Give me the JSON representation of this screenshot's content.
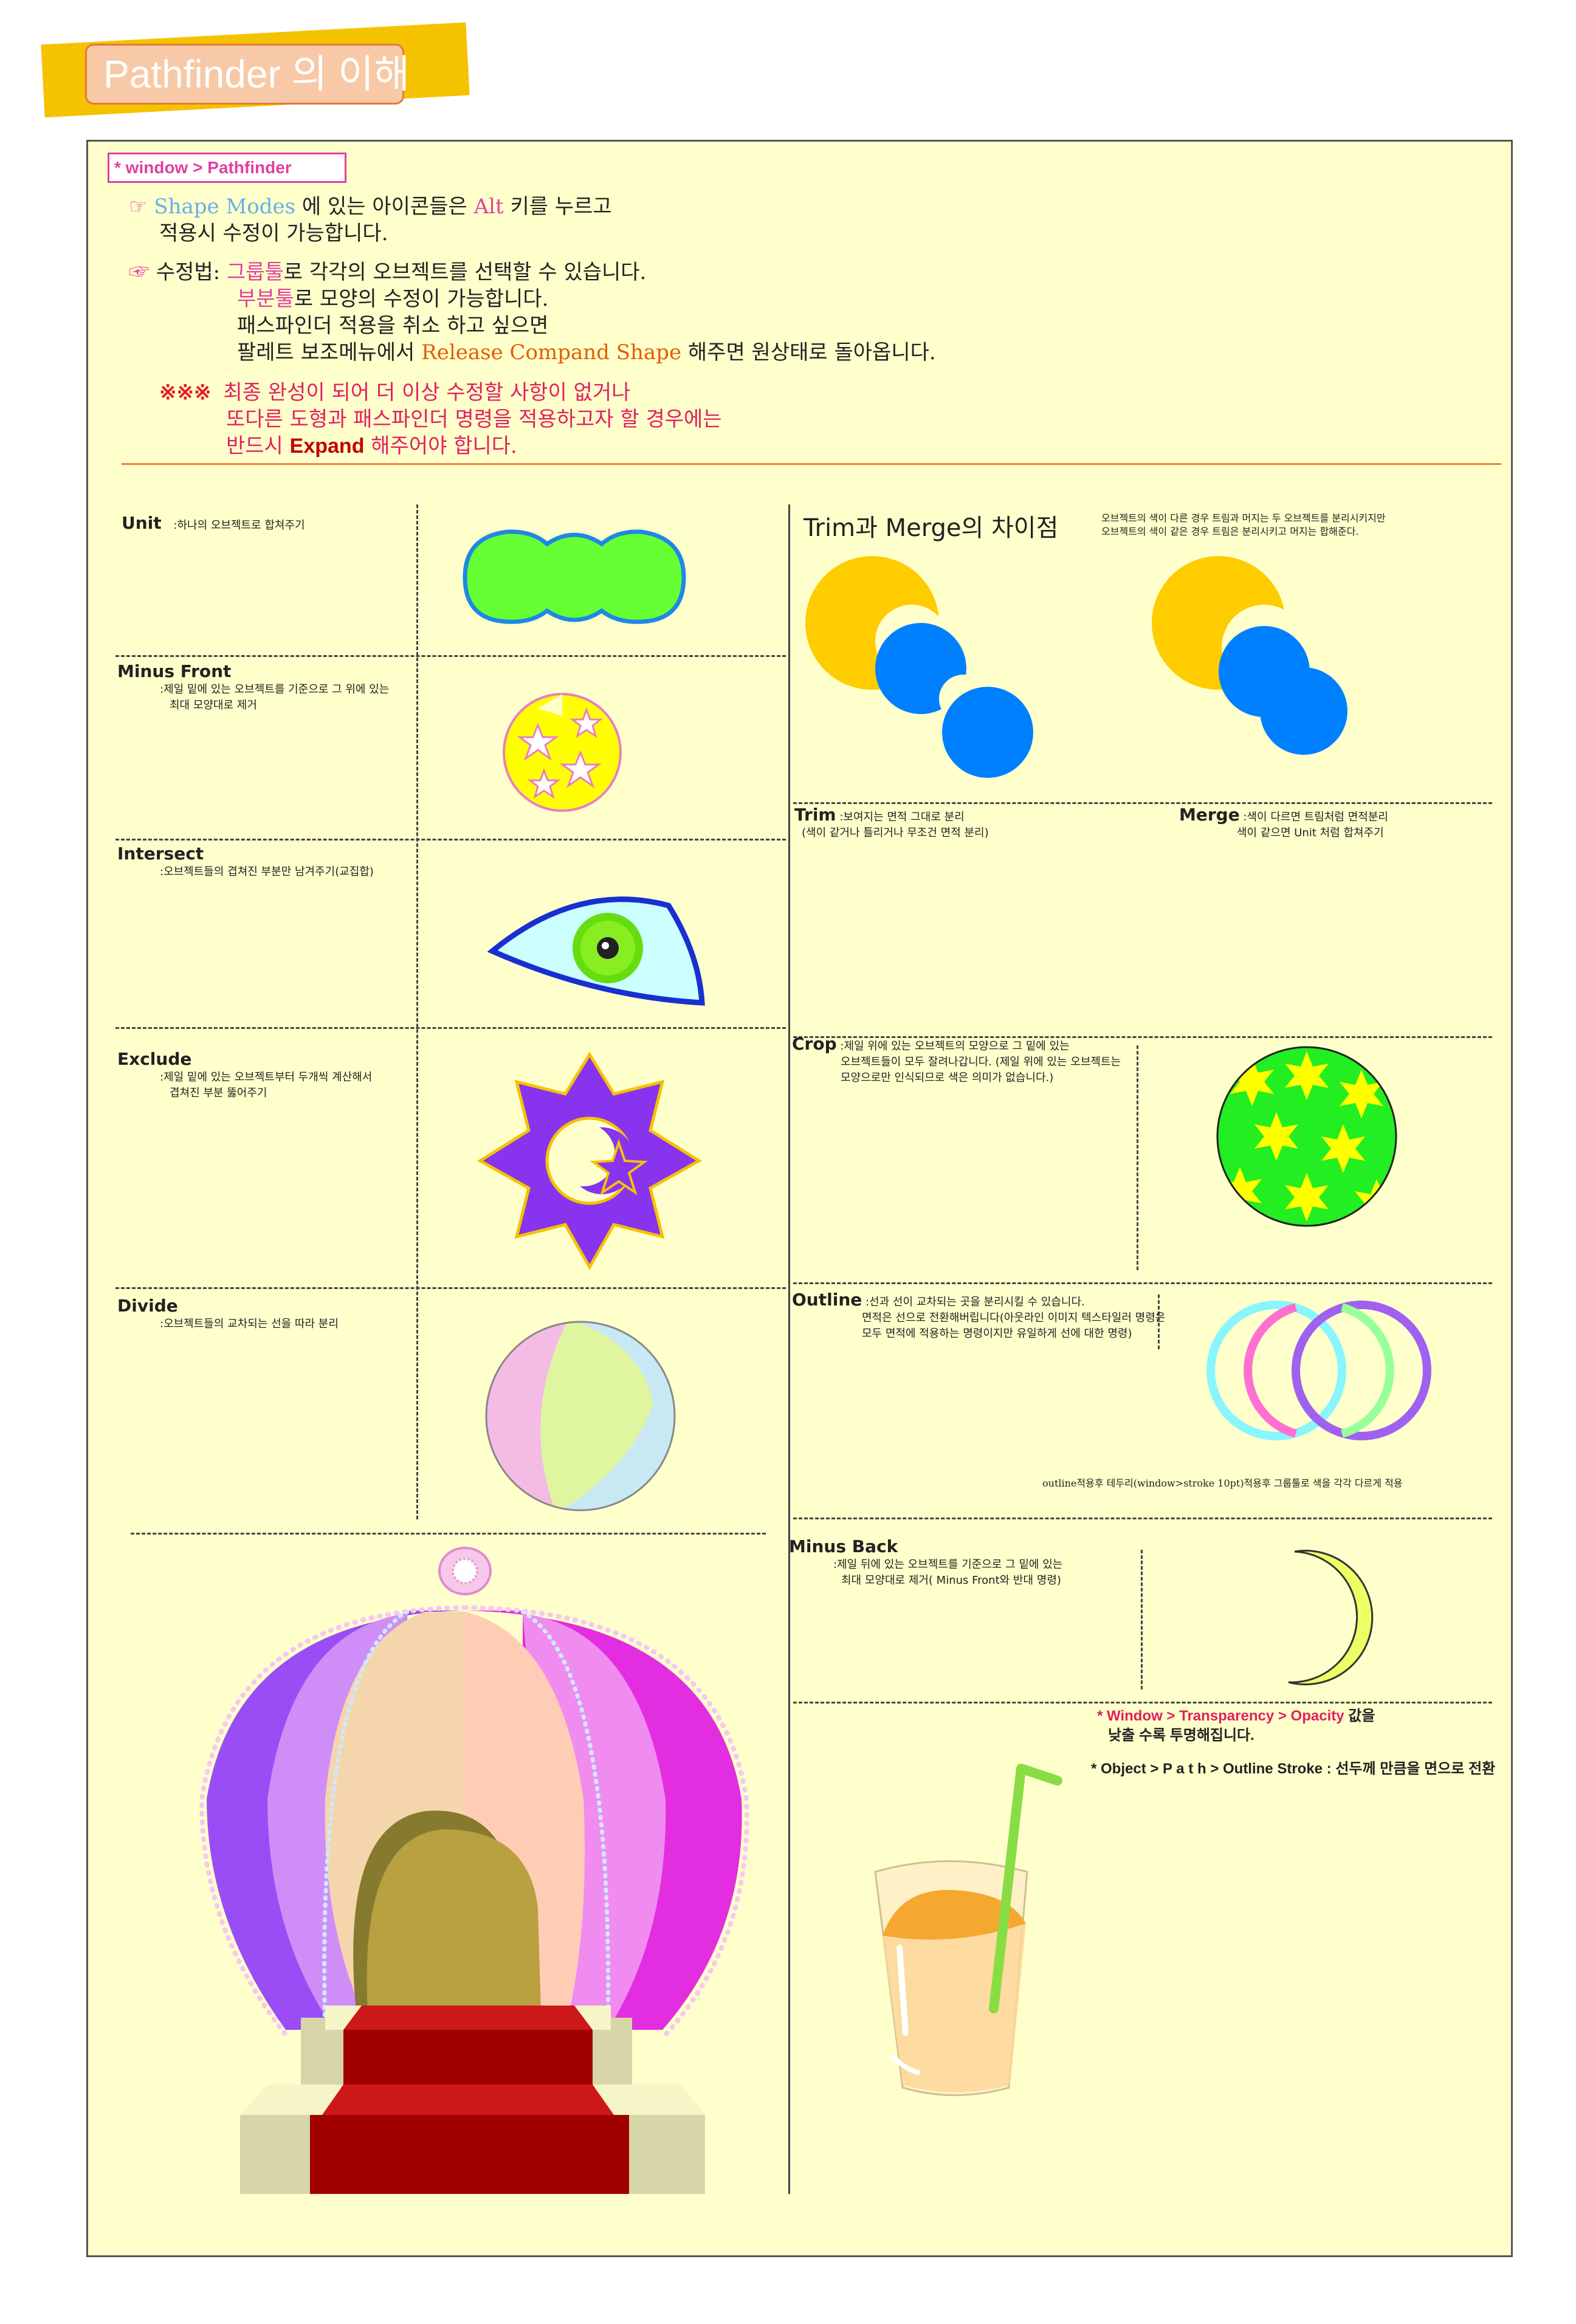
{
  "title": "Pathfinder 의 이해",
  "menu_path": "* window > Pathfinder",
  "notes": {
    "shape_modes": {
      "bullet": "☞",
      "kw1": "Shape Modes",
      "t1": " 에 있는 아이콘들은 ",
      "kw2": "Alt",
      "t2": " 키를 누르고",
      "line2": "적용시 수정이 가능합니다."
    },
    "edit": {
      "bullet": "☞",
      "lead": "수정법: ",
      "kw1": "그룹툴",
      "t1": "로 각각의 오브젝트를 선택할 수 있습니다.",
      "kw2": "부분툴",
      "t2": "로 모양의 수정이 가능합니다.",
      "line3": "패스파인더 적용을 취소 하고 싶으면",
      "t4a": "팔레트 보조메뉴에서 ",
      "kw4": "Release Compand Shape",
      "t4b": " 해주면 원상태로 돌아옵니다."
    },
    "warning": {
      "marks": "※※※",
      "line1": "최종 완성이 되어 더 이상 수정할 사항이 없거나",
      "line2": "또다른 도형과 패스파인더 명령을 적용하고자 할 경우에는",
      "line3a": "반드시 ",
      "kw": "Expand",
      "line3b": " 해주어야 합니다."
    }
  },
  "left_items": [
    {
      "name": "Unit",
      "desc1": ":하나의 오브젝트로 합쳐주기",
      "desc2": ""
    },
    {
      "name": "Minus Front",
      "desc1": ":제일 밑에 있는 오브젝트를 기준으로 그 위에 있는",
      "desc2": "최대 모양대로 제거"
    },
    {
      "name": "Intersect",
      "desc1": ":오브젝트들의 겹쳐진 부분만 남겨주기(교집합)",
      "desc2": ""
    },
    {
      "name": "Exclude",
      "desc1": ":제일 밑에 있는 오브젝트부터 두개씩 계산해서",
      "desc2": "겹쳐진 부분 뚫어주기"
    },
    {
      "name": "Divide",
      "desc1": ":오브젝트들의 교차되는 선을 따라 분리",
      "desc2": ""
    }
  ],
  "trim_merge": {
    "heading": "Trim과 Merge의  차이점",
    "note1": "오브젝트의 색이 다른 경우 트림과 머지는 두 오브젝트를 분리시키지만",
    "note2": "오브젝트의 색이 같은 경우 트림은 분리시키고 머지는 합해준다."
  },
  "right_items": [
    {
      "name": "Trim",
      "desc1": ":보여지는 면적 그대로 분리",
      "desc2": "(색이 같거나 틀리거나 무조건 면적 분리)",
      "desc3": ""
    },
    {
      "name": "Merge",
      "desc1": ":색이 다르면 트림처럼 면적분리",
      "desc2": "색이 같으면 Unit 처럼 합쳐주기",
      "desc3": ""
    },
    {
      "name": "Crop",
      "desc1": ":제일 위에 있는 오브젝트의 모양으로 그 밑에 있는",
      "desc2": "오브젝트들이 모두 잘려나갑니다. (제일 위에 있는 오브젝트는",
      "desc3": "모양으로만 인식되므로 색은 의미가 없습니다.)"
    },
    {
      "name": "Outline",
      "desc1": ":선과 선이 교차되는 곳을 분리시킬 수 있습니다.",
      "desc2": "면적은 선으로 전환해버립니다(아웃라인 이미지 텍스타일러  명령은",
      "desc3": "모두 면적에 적용하는 명령이지만 유일하게 선에 대한 명령)"
    },
    {
      "name": "Minus Back",
      "desc1": ":제일 뒤에 있는 오브젝트를 기준으로 그 밑에 있는",
      "desc2": "최대 모양대로 제거( Minus Front와 반대 명령)",
      "desc3": ""
    }
  ],
  "outline_caption": "outline적용후 테두리(window>stroke 10pt)적용후 그룹툴로 색을 각각 다르게 적용",
  "transparency": {
    "line1a": "* Window > Transparency  > Opacity",
    "line1b": " 값을",
    "line2": "낮출 수록 투명해집니다."
  },
  "outline_stroke": {
    "a": "* Object > P a t h   > ",
    "b": "Outline Stroke",
    "c": " : 선두께 만큼을 면으로 전환"
  },
  "colors": {
    "title_band": "#f5c200",
    "title_box": "#f8c9a6",
    "panel": "#ffffcc",
    "pink": "#e040a0",
    "sky": "#66b0e8",
    "orange": "#e65c00",
    "red": "#e02020",
    "divider": "#f08040"
  }
}
